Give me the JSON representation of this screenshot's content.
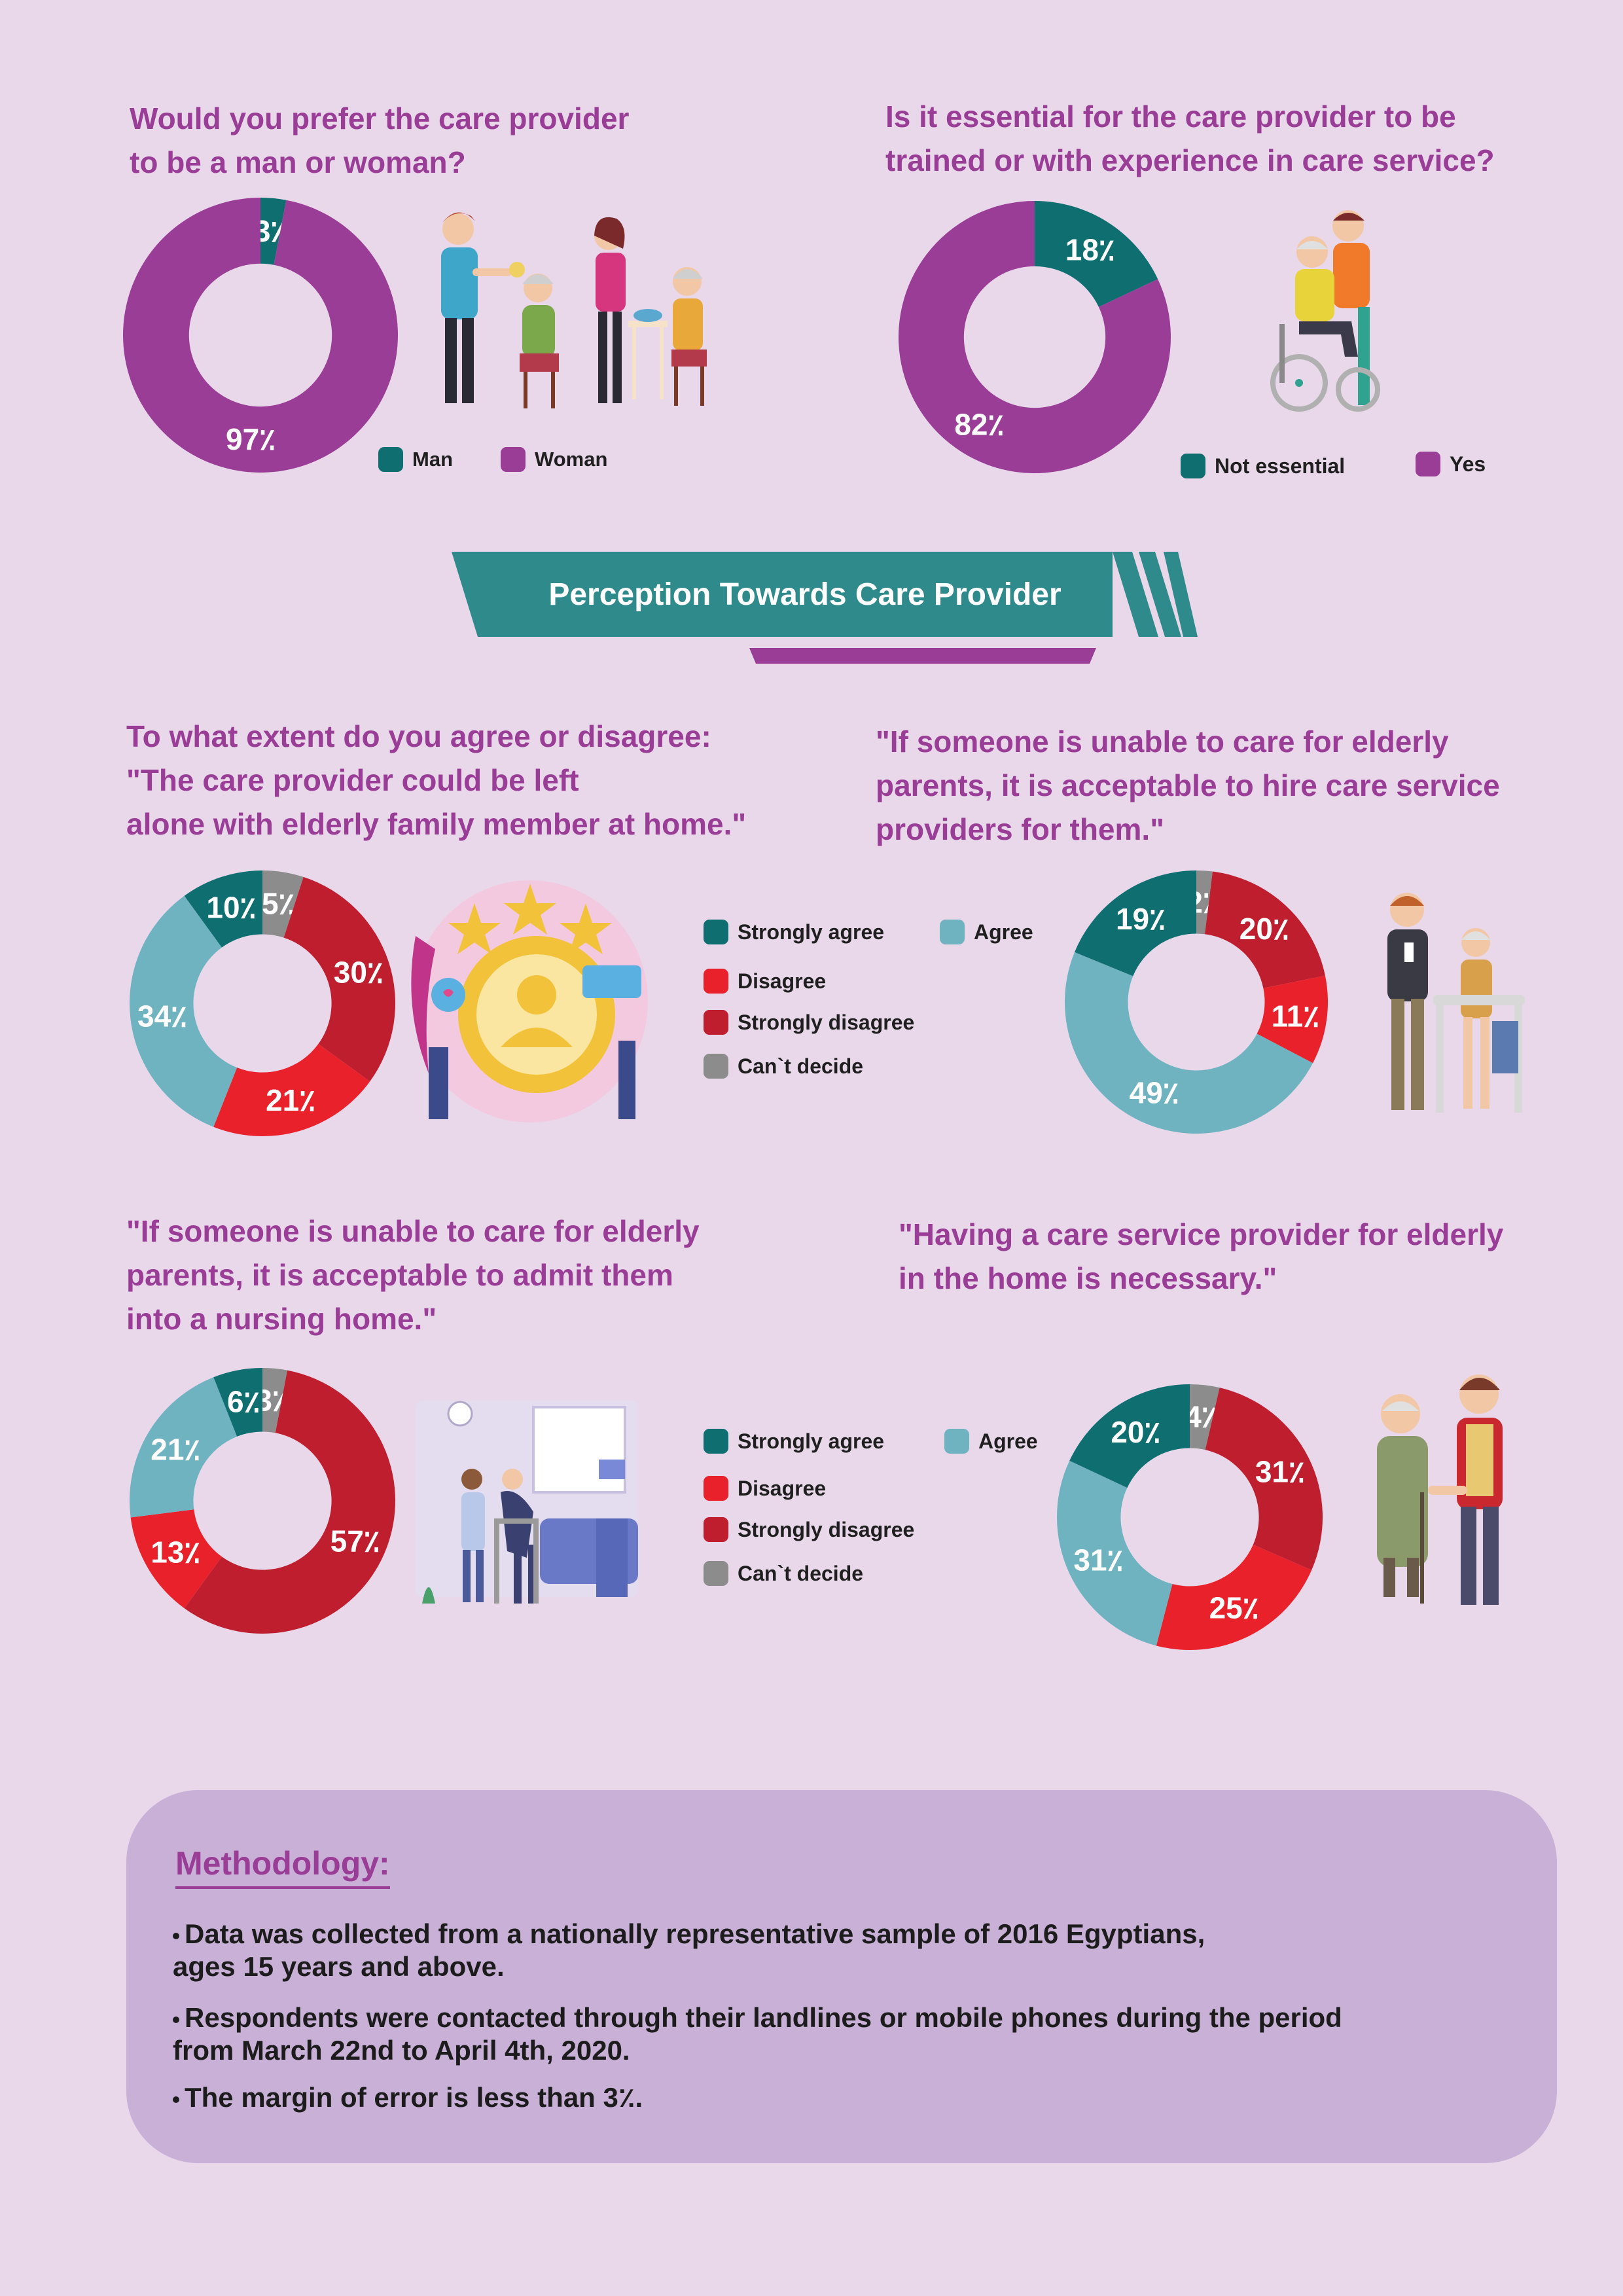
{
  "colors": {
    "background": "#e8d8ea",
    "purple": "#9a3d97",
    "teal": "#0e6e70",
    "light_teal": "#6fb3c0",
    "red": "#e8212b",
    "dark_red": "#bf1e2e",
    "gray": "#8c8c8c",
    "banner_teal": "#2f8a8c",
    "method_box": "#c9b0d7"
  },
  "banner": {
    "title": "Perception Towards Care Provider"
  },
  "chart_data": [
    {
      "type": "pie",
      "donut": true,
      "title": "Would you prefer the care provider\nto be a man or woman?",
      "series": [
        {
          "name": "Man",
          "value": 3,
          "label": "3٪",
          "color": "#0e6e70"
        },
        {
          "name": "Woman",
          "value": 97,
          "label": "97٪",
          "color": "#9a3d97"
        }
      ],
      "legend": [
        "Man",
        "Woman"
      ]
    },
    {
      "type": "pie",
      "donut": true,
      "title": "Is it essential for the care provider to be\ntrained or with experience in care service?",
      "series": [
        {
          "name": "Not essential",
          "value": 18,
          "label": "18٪",
          "color": "#0e6e70"
        },
        {
          "name": "Yes",
          "value": 82,
          "label": "82٪",
          "color": "#9a3d97"
        }
      ],
      "legend": [
        "Not essential",
        "Yes"
      ]
    },
    {
      "type": "pie",
      "donut": true,
      "title": "To what extent do you agree or disagree:\n\"The care provider could be left\nalone with elderly family member at home.\"",
      "series": [
        {
          "name": "Can`t decide",
          "value": 5,
          "label": "5٪",
          "color": "#8c8c8c"
        },
        {
          "name": "Strongly disagree",
          "value": 30,
          "label": "30٪",
          "color": "#bf1e2e"
        },
        {
          "name": "Disagree",
          "value": 21,
          "label": "21٪",
          "color": "#e8212b"
        },
        {
          "name": "Agree",
          "value": 34,
          "label": "34٪",
          "color": "#6fb3c0"
        },
        {
          "name": "Strongly agree",
          "value": 10,
          "label": "10٪",
          "color": "#0e6e70"
        }
      ]
    },
    {
      "type": "pie",
      "donut": true,
      "title": "\"If someone is unable to care for elderly\nparents, it is acceptable to hire care service\nproviders for them.\"",
      "series": [
        {
          "name": "Can`t decide",
          "value": 2,
          "label": "2٪",
          "color": "#8c8c8c"
        },
        {
          "name": "Strongly disagree",
          "value": 20,
          "label": "20٪",
          "color": "#bf1e2e"
        },
        {
          "name": "Disagree",
          "value": 11,
          "label": "11٪",
          "color": "#e8212b"
        },
        {
          "name": "Agree",
          "value": 49,
          "label": "49٪",
          "color": "#6fb3c0"
        },
        {
          "name": "Strongly agree",
          "value": 19,
          "label": "19٪",
          "color": "#0e6e70"
        }
      ]
    },
    {
      "type": "pie",
      "donut": true,
      "title": "\"If someone is unable to care for elderly\nparents, it is acceptable to admit them\ninto a nursing home.\"",
      "series": [
        {
          "name": "Can`t decide",
          "value": 3,
          "label": "3٪",
          "color": "#8c8c8c"
        },
        {
          "name": "Strongly disagree",
          "value": 57,
          "label": "57٪",
          "color": "#bf1e2e"
        },
        {
          "name": "Disagree",
          "value": 13,
          "label": "13٪",
          "color": "#e8212b"
        },
        {
          "name": "Agree",
          "value": 21,
          "label": "21٪",
          "color": "#6fb3c0"
        },
        {
          "name": "Strongly agree",
          "value": 6,
          "label": "6٪",
          "color": "#0e6e70"
        }
      ]
    },
    {
      "type": "pie",
      "donut": true,
      "title": "\"Having a care service provider for elderly\nin the home is necessary.\"",
      "series": [
        {
          "name": "Can`t decide",
          "value": 4,
          "label": "4٪",
          "color": "#8c8c8c"
        },
        {
          "name": "Strongly disagree",
          "value": 31,
          "label": "31٪",
          "color": "#bf1e2e"
        },
        {
          "name": "Disagree",
          "value": 25,
          "label": "25٪",
          "color": "#e8212b"
        },
        {
          "name": "Agree",
          "value": 31,
          "label": "31٪",
          "color": "#6fb3c0"
        },
        {
          "name": "Strongly agree",
          "value": 20,
          "label": "20٪",
          "color": "#0e6e70"
        }
      ]
    }
  ],
  "agreement_legend": {
    "strongly_agree": "Strongly agree",
    "agree": "Agree",
    "disagree": "Disagree",
    "strongly_disagree": "Strongly disagree",
    "cant_decide": "Can`t decide"
  },
  "methodology": {
    "title": "Methodology:",
    "bullets": [
      "Data was collected from a nationally representative sample of 2016 Egyptians,\n ages 15 years and above.",
      "Respondents were contacted through their landlines or mobile phones during the period\n from March 22nd to April 4th, 2020.",
      "The margin of error is less than 3٪."
    ]
  }
}
